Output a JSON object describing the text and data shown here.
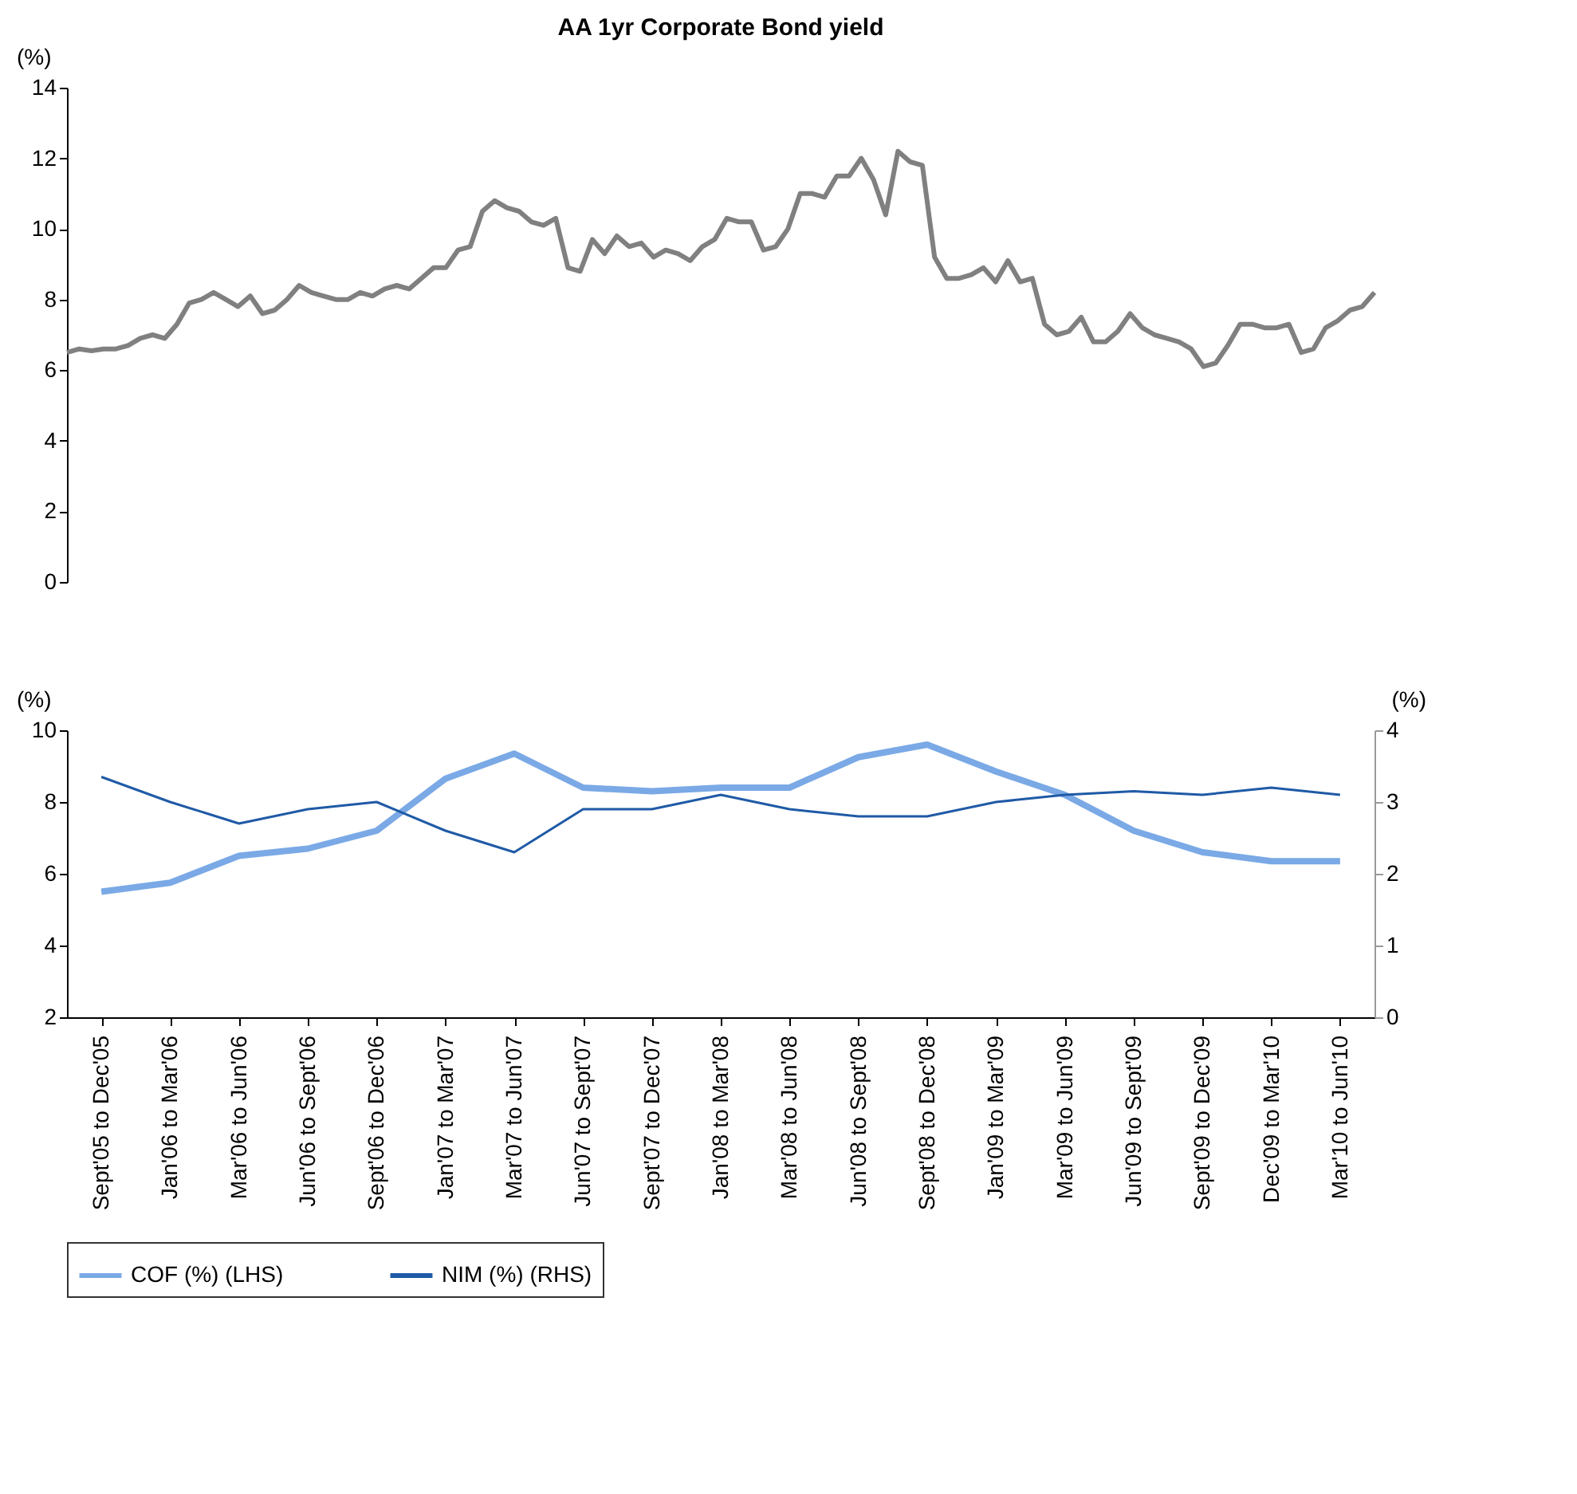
{
  "chart_data": [
    {
      "type": "line",
      "title": "AA 1yr Corporate Bond yield",
      "ylabel": "(%)",
      "tick_labels": "y",
      "grid": false,
      "marker": "none",
      "categories": [
        null,
        null,
        null,
        null,
        null,
        null,
        null,
        null,
        null,
        null,
        null,
        null,
        null,
        null,
        null,
        null,
        null,
        null,
        null,
        null,
        null,
        null,
        null,
        null,
        null,
        null,
        null,
        null,
        null,
        null,
        null,
        null,
        null,
        null,
        null,
        null,
        null,
        null,
        null,
        null,
        null,
        null,
        null,
        null,
        null,
        null,
        null,
        null,
        null,
        null,
        null,
        null,
        null,
        null,
        null,
        null,
        null,
        null,
        null,
        null,
        null,
        null,
        null,
        null,
        null,
        null,
        null,
        null,
        null,
        null,
        null,
        null,
        null,
        null,
        null,
        null,
        null,
        null,
        null,
        null,
        null,
        null,
        null,
        null,
        null,
        null,
        null,
        null,
        null,
        null,
        null,
        null,
        null,
        null,
        null,
        null,
        null,
        null,
        null,
        null,
        null,
        null,
        null,
        null,
        null,
        null,
        null,
        null
      ],
      "series": [
        {
          "color": "#808080",
          "values": [
            6.5,
            6.6,
            6.55,
            6.6,
            6.6,
            6.7,
            6.9,
            7.0,
            6.9,
            7.3,
            7.9,
            8.0,
            8.2,
            8.0,
            7.8,
            8.1,
            7.6,
            7.7,
            8.0,
            8.4,
            8.2,
            8.1,
            8.0,
            8.0,
            8.2,
            8.1,
            8.3,
            8.4,
            8.3,
            8.6,
            8.9,
            8.9,
            9.4,
            9.5,
            10.5,
            10.8,
            10.6,
            10.5,
            10.2,
            10.1,
            10.3,
            8.9,
            8.8,
            9.7,
            9.3,
            9.8,
            9.5,
            9.6,
            9.2,
            9.4,
            9.3,
            9.1,
            9.5,
            9.7,
            10.3,
            10.2,
            10.2,
            9.4,
            9.5,
            10.0,
            11.0,
            11.0,
            10.9,
            11.5,
            11.5,
            12.0,
            11.4,
            10.4,
            12.2,
            11.9,
            11.8,
            9.2,
            8.6,
            8.6,
            8.7,
            8.9,
            8.5,
            9.1,
            8.5,
            8.6,
            7.3,
            7.0,
            7.1,
            7.5,
            6.8,
            6.8,
            7.1,
            7.6,
            7.2,
            7.0,
            6.9,
            6.8,
            6.6,
            6.1,
            6.2,
            6.7,
            7.3,
            7.3,
            7.2,
            7.2,
            7.3,
            6.5,
            6.6,
            7.2,
            7.4,
            7.7,
            7.8,
            8.2
          ]
        }
      ],
      "ylim": [
        0,
        14
      ],
      "yticks": [
        0,
        2,
        4,
        6,
        8,
        10,
        12,
        14
      ]
    },
    {
      "type": "line",
      "ylabel": "(%)",
      "y2label": "(%)",
      "grid": false,
      "legend": "bottom",
      "marker": "none",
      "categories": [
        "Sept'05 to Dec'05",
        "Jan'06 to Mar'06",
        "Mar'06 to Jun'06",
        "Jun'06 to Sept'06",
        "Sept'06 to Dec'06",
        "Jan'07 to Mar'07",
        "Mar'07 to Jun'07",
        "Jun'07 to Sept'07",
        "Sept'07 to Dec'07",
        "Jan'08 to Mar'08",
        "Mar'08 to Jun'08",
        "Jun'08 to Sept'08",
        "Sept'08 to Dec'08",
        "Jan'09 to Mar'09",
        "Mar'09 to Jun'09",
        "Jun'09 to Sept'09",
        "Sept'09 to Dec'09",
        "Dec'09 to Mar'10",
        "Mar'10 to Jun'10"
      ],
      "series": [
        {
          "name": "COF (%) (LHS)",
          "color": "#7aa9e6",
          "axis": "y",
          "values": [
            5.5,
            5.75,
            6.5,
            6.7,
            7.2,
            8.65,
            9.35,
            8.4,
            8.3,
            8.4,
            8.4,
            9.25,
            9.6,
            8.85,
            8.2,
            7.2,
            6.6,
            6.35,
            6.35
          ]
        },
        {
          "name": "NIM (%) (RHS)",
          "color": "#1f5aa6",
          "axis": "y2",
          "values": [
            3.35,
            3.0,
            2.7,
            2.9,
            3.0,
            2.6,
            2.3,
            2.9,
            2.9,
            3.1,
            2.9,
            2.8,
            2.8,
            3.0,
            3.1,
            3.15,
            3.1,
            3.2,
            3.1
          ]
        }
      ],
      "ylim": [
        2,
        10
      ],
      "yticks": [
        2,
        4,
        6,
        8,
        10
      ],
      "y2lim": [
        0,
        4
      ],
      "y2ticks": [
        0,
        1,
        2,
        3,
        4
      ]
    }
  ]
}
